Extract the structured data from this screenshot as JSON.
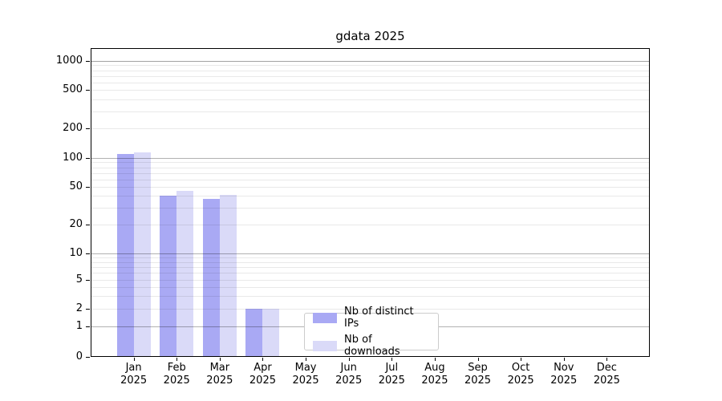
{
  "chart_data": {
    "type": "bar",
    "title": "gdata 2025",
    "scale": "symlog",
    "grid": "both",
    "legend_position": "lower-center-inside",
    "categories": [
      "Jan",
      "Feb",
      "Mar",
      "Apr",
      "May",
      "Jun",
      "Jul",
      "Aug",
      "Sep",
      "Oct",
      "Nov",
      "Dec"
    ],
    "year": "2025",
    "yticks": [
      0,
      1,
      2,
      5,
      10,
      20,
      50,
      100,
      200,
      500,
      1000
    ],
    "ylim": [
      0,
      1400
    ],
    "series": [
      {
        "name": "Nb of distinct IPs",
        "color": "#a9a9f4",
        "values": [
          110,
          40,
          37,
          2,
          0,
          0,
          0,
          0,
          0,
          0,
          0,
          0
        ]
      },
      {
        "name": "Nb of downloads",
        "color": "#dadaf8",
        "values": [
          114,
          45,
          41,
          2,
          0,
          0,
          0,
          0,
          0,
          0,
          0,
          0
        ]
      }
    ]
  }
}
